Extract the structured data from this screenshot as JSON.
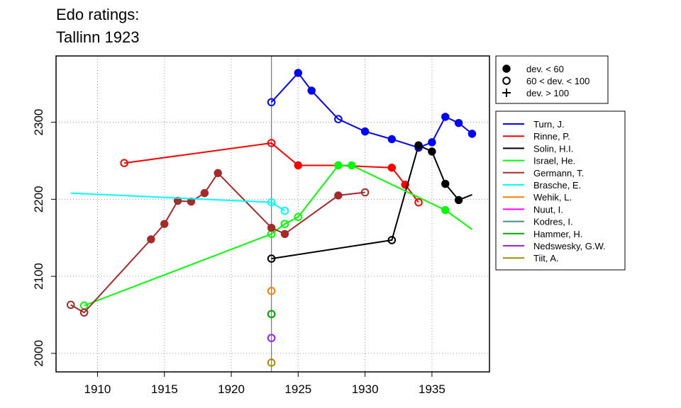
{
  "chart_data": {
    "type": "line",
    "title_lines": [
      "Edo ratings:",
      "Tallinn 1923"
    ],
    "xlim": [
      1906.9,
      1939.3
    ],
    "ylim": [
      1976,
      2386
    ],
    "x_ticks": [
      1910,
      1915,
      1920,
      1925,
      1930,
      1935
    ],
    "y_ticks": [
      2000,
      2100,
      2200,
      2300
    ],
    "grid": true,
    "event_year": 1923,
    "legend_deviation": [
      {
        "marker": "filled",
        "label": "dev. < 60"
      },
      {
        "marker": "open",
        "label": "60 < dev. < 100"
      },
      {
        "marker": "plus",
        "label": "dev. > 100"
      }
    ],
    "legend_position": "right",
    "series": [
      {
        "name": "Turn, J.",
        "color": "#0000ff",
        "points": [
          {
            "x": 1923,
            "y": 2326,
            "m": "open"
          },
          {
            "x": 1925,
            "y": 2364,
            "m": "filled"
          },
          {
            "x": 1926,
            "y": 2341,
            "m": "filled"
          },
          {
            "x": 1928,
            "y": 2304,
            "m": "open"
          },
          {
            "x": 1930,
            "y": 2288,
            "m": "filled"
          },
          {
            "x": 1932,
            "y": 2278,
            "m": "filled"
          },
          {
            "x": 1934,
            "y": 2267,
            "m": "filled"
          },
          {
            "x": 1935,
            "y": 2274,
            "m": "filled"
          },
          {
            "x": 1936,
            "y": 2307,
            "m": "filled"
          },
          {
            "x": 1937,
            "y": 2299,
            "m": "filled"
          },
          {
            "x": 1938,
            "y": 2285,
            "m": "filled"
          }
        ]
      },
      {
        "name": "Rinne, P.",
        "color": "#ff0000",
        "points": [
          {
            "x": 1912,
            "y": 2247,
            "m": "open"
          },
          {
            "x": 1923,
            "y": 2273,
            "m": "open"
          },
          {
            "x": 1925,
            "y": 2244,
            "m": "filled"
          },
          {
            "x": 1928,
            "y": 2244,
            "m": "filled"
          },
          {
            "x": 1932,
            "y": 2241,
            "m": "filled"
          },
          {
            "x": 1933,
            "y": 2219,
            "m": "filled"
          },
          {
            "x": 1934,
            "y": 2196,
            "m": "open"
          }
        ]
      },
      {
        "name": "Solin, H.I.",
        "color": "#000000",
        "points": [
          {
            "x": 1923,
            "y": 2123,
            "m": "open"
          },
          {
            "x": 1932,
            "y": 2147,
            "m": "open"
          },
          {
            "x": 1934,
            "y": 2270,
            "m": "filled"
          },
          {
            "x": 1935,
            "y": 2262,
            "m": "filled"
          },
          {
            "x": 1936,
            "y": 2220,
            "m": "filled"
          },
          {
            "x": 1937,
            "y": 2199,
            "m": "filled"
          },
          {
            "x": 1938,
            "y": 2206,
            "m": "none"
          }
        ]
      },
      {
        "name": "Israel, He.",
        "color": "#00ff00",
        "points": [
          {
            "x": 1909,
            "y": 2062,
            "m": "open"
          },
          {
            "x": 1923,
            "y": 2155,
            "m": "open"
          },
          {
            "x": 1924,
            "y": 2168,
            "m": "open"
          },
          {
            "x": 1925,
            "y": 2177,
            "m": "open"
          },
          {
            "x": 1928,
            "y": 2244,
            "m": "filled"
          },
          {
            "x": 1929,
            "y": 2244,
            "m": "filled"
          },
          {
            "x": 1936,
            "y": 2186,
            "m": "filled"
          },
          {
            "x": 1938,
            "y": 2161,
            "m": "none"
          }
        ]
      },
      {
        "name": "Germann, T.",
        "color": "#a52a2a",
        "points": [
          {
            "x": 1908,
            "y": 2063,
            "m": "open"
          },
          {
            "x": 1909,
            "y": 2053,
            "m": "open"
          },
          {
            "x": 1914,
            "y": 2148,
            "m": "filled"
          },
          {
            "x": 1915,
            "y": 2168,
            "m": "filled"
          },
          {
            "x": 1916,
            "y": 2198,
            "m": "filled"
          },
          {
            "x": 1917,
            "y": 2197,
            "m": "filled"
          },
          {
            "x": 1918,
            "y": 2208,
            "m": "filled"
          },
          {
            "x": 1919,
            "y": 2234,
            "m": "filled"
          },
          {
            "x": 1923,
            "y": 2163,
            "m": "filled"
          },
          {
            "x": 1924,
            "y": 2155,
            "m": "filled"
          },
          {
            "x": 1928,
            "y": 2205,
            "m": "filled"
          },
          {
            "x": 1930,
            "y": 2209,
            "m": "open"
          }
        ]
      },
      {
        "name": "Brasche, E.",
        "color": "#00ffff",
        "points": [
          {
            "x": 1908,
            "y": 2208,
            "m": "none"
          },
          {
            "x": 1923,
            "y": 2196,
            "m": "open"
          },
          {
            "x": 1924,
            "y": 2185,
            "m": "open"
          }
        ]
      },
      {
        "name": "Wehik, L.",
        "color": "#ff7f00",
        "points": [
          {
            "x": 1923,
            "y": 2081,
            "m": "open"
          }
        ]
      },
      {
        "name": "Nuut, I.",
        "color": "#ff00ff",
        "points": []
      },
      {
        "name": "Kodres, I.",
        "color": "#4a8a8a",
        "points": [
          {
            "x": 1923,
            "y": 2051,
            "m": "open"
          }
        ]
      },
      {
        "name": "Hammer, H.",
        "color": "#00aa00",
        "points": [
          {
            "x": 1923,
            "y": 2051,
            "m": "open"
          }
        ]
      },
      {
        "name": "Nedswesky, G.W.",
        "color": "#a020f0",
        "points": [
          {
            "x": 1923,
            "y": 2020,
            "m": "open"
          }
        ]
      },
      {
        "name": "Tiit, A.",
        "color": "#a09000",
        "points": [
          {
            "x": 1923,
            "y": 1988,
            "m": "open"
          }
        ]
      }
    ]
  }
}
